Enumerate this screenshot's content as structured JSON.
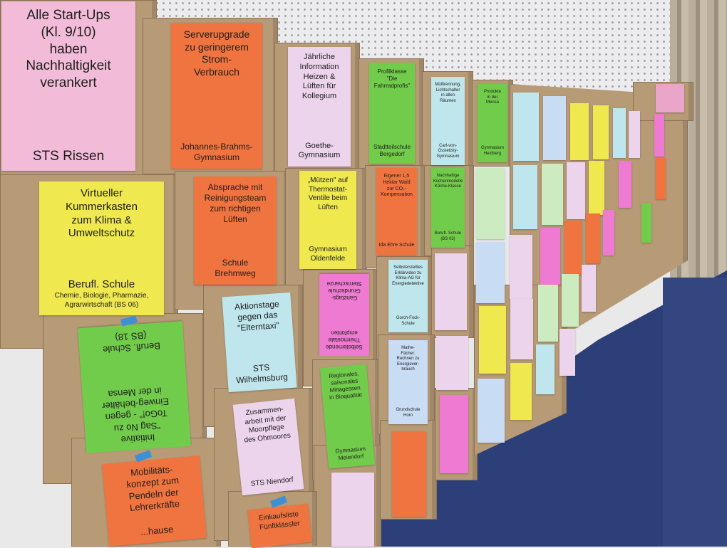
{
  "scene": "stacked cardboard boxes with colored sustainability-project labels",
  "colors": {
    "cardboard": "#b79a76",
    "wall": "#ececee",
    "floor": "#2c3f78"
  },
  "labels": [
    {
      "title": "Alle Start-Ups\n(Kl. 9/10)\nhaben\nNachhaltigkeit\nverankert",
      "school": "STS Rissen"
    },
    {
      "title": "Serverupgrade\nzu geringerem\nStrom-\nVerbrauch",
      "school": "Johannes-Brahms-\nGymnasium"
    },
    {
      "title": "Jährliche\nInformation\nHeizen &\nLüften für\nKollegium",
      "school": "Goethe-\nGymnasium"
    },
    {
      "title": "Profilklasse\n\"Die\nFahrradprofis\"",
      "school": "Stadtteilschule\nBergedorf"
    },
    {
      "title": "Mülltrennung,\nLichtschalter\nin allen Räumen",
      "school": "Carl-von-\nOssietzky-\nGymnasium"
    },
    {
      "title": "Produkte\nin der\nMensa",
      "school": "Gymnasium\nHeidberg"
    },
    {
      "title": "Virtueller\nKummerkasten\nzum Klima &\nUmweltschutz",
      "school": "Berufl. Schule",
      "subtitle": "Chemie, Biologie, Pharmazie,\nAgrarwirtschaft (BS 06)"
    },
    {
      "title": "Absprache mit\nReinigungsteam\nzum richtigen\nLüften",
      "school": "Schule\nBrehmweg"
    },
    {
      "title": "„Mützen\" auf\nThermostat-\nVentile beim\nLüften",
      "school": "Gymnasium\nOldenfelde"
    },
    {
      "title": "Eigener 1,5\nHektar Wald\nzur CO₂-\nKompensation",
      "school": "Ida Ehre Schule"
    },
    {
      "title": "Nachhaltige\nKüchenmodelle\nKöche-Klasse",
      "school": "Berufl. Schule\n(BS 03)"
    },
    {
      "title": "Aktionstage\ngegen das\n\"Elterntaxi\"",
      "school": "STS\nWilhelmsburg"
    },
    {
      "title": "Selbsternende\nThermostate\nempfohlen",
      "school": "Ganztags-\nGrundschule\nSternschanze"
    },
    {
      "title": "Selbsterstelltes\nErklärvideo zu\nKlima-AG für\nEnergiedetektive",
      "school": "Gorch-Fock-\nSchule"
    },
    {
      "title": "Initiative\n\"Sag No zu\nToGo!\" - gegen\nEinweg-behälter\nin der Mensa",
      "school": "Berufl. Schule\n(BS 18)"
    },
    {
      "title": "Zusammen-\narbeit mit der\nMoorpflege\ndes Ohmoores",
      "school": "STS Niendorf"
    },
    {
      "title": "Regionales,\nsaisonales\nMittagessen\nin Bioqualität",
      "school": "Gymnasium\nMeiendorf"
    },
    {
      "title": "Mathe-\nFächer:\nRechnen zu\nEnergiever-\nbrauch",
      "school": "Grundschule\nHorn"
    },
    {
      "title": "Mobilitäts-\nkonzept zum\nPendeln der\nLehrerkräfte",
      "school": "...hause"
    },
    {
      "title": "Einkaufsliste\nFünftklässler",
      "school": ""
    }
  ]
}
